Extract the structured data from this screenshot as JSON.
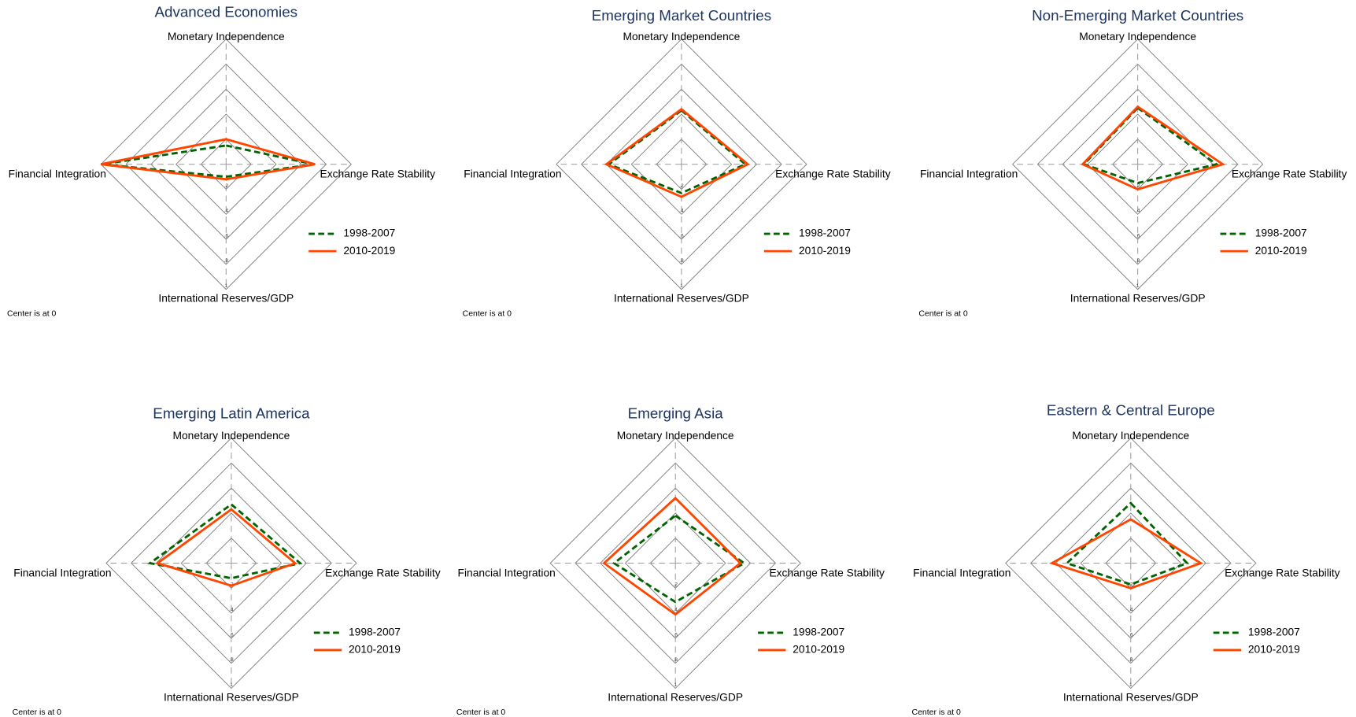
{
  "chart_data": [
    {
      "type": "radar",
      "title": "Advanced Economies",
      "categories": [
        "Monetary Independence",
        "Exchange Rate Stability",
        "International Reserves/GDP",
        "Financial Integration"
      ],
      "rlim": [
        0,
        1
      ],
      "rticks": [
        {
          "value": 0.2,
          "label": ".2"
        },
        {
          "value": 0.4,
          "label": ".4"
        },
        {
          "value": 0.6,
          "label": ".6"
        },
        {
          "value": 0.8,
          "label": ".8"
        },
        1
      ],
      "note": "Center is at 0",
      "series": [
        {
          "name": "1998-2007",
          "color": "#006400",
          "dashed": true,
          "values": [
            0.15,
            0.7,
            0.1,
            0.99
          ]
        },
        {
          "name": "2010-2019",
          "color": "#ff4500",
          "dashed": false,
          "values": [
            0.2,
            0.71,
            0.12,
            1.0
          ]
        }
      ]
    },
    {
      "type": "radar",
      "title": "Emerging Market Countries",
      "categories": [
        "Monetary Independence",
        "Exchange Rate Stability",
        "International Reserves/GDP",
        "Financial Integration"
      ],
      "rlim": [
        0,
        1
      ],
      "rticks": [
        {
          "value": 0.2,
          "label": ".2"
        },
        {
          "value": 0.4,
          "label": ".4"
        },
        {
          "value": 0.6,
          "label": ".6"
        },
        {
          "value": 0.8,
          "label": ".8"
        },
        1
      ],
      "note": "Center is at 0",
      "series": [
        {
          "name": "1998-2007",
          "color": "#006400",
          "dashed": true,
          "values": [
            0.43,
            0.51,
            0.23,
            0.58
          ]
        },
        {
          "name": "2010-2019",
          "color": "#ff4500",
          "dashed": false,
          "values": [
            0.44,
            0.53,
            0.26,
            0.6
          ]
        }
      ]
    },
    {
      "type": "radar",
      "title": "Non-Emerging Market Countries",
      "categories": [
        "Monetary Independence",
        "Exchange Rate Stability",
        "International Reserves/GDP",
        "Financial Integration"
      ],
      "rlim": [
        0,
        1
      ],
      "rticks": [
        {
          "value": 0.2,
          "label": ".2"
        },
        {
          "value": 0.4,
          "label": ".4"
        },
        {
          "value": 0.6,
          "label": ".6"
        },
        {
          "value": 0.8,
          "label": ".8"
        },
        1
      ],
      "note": "Center is at 0",
      "series": [
        {
          "name": "1998-2007",
          "color": "#006400",
          "dashed": true,
          "values": [
            0.45,
            0.63,
            0.15,
            0.43
          ]
        },
        {
          "name": "2010-2019",
          "color": "#ff4500",
          "dashed": false,
          "values": [
            0.46,
            0.68,
            0.2,
            0.44
          ]
        }
      ]
    },
    {
      "type": "radar",
      "title": "Emerging Latin America",
      "categories": [
        "Monetary Independence",
        "Exchange Rate Stability",
        "International Reserves/GDP",
        "Financial Integration"
      ],
      "rlim": [
        0,
        1
      ],
      "rticks": [
        {
          "value": 0.2,
          "label": ".2"
        },
        {
          "value": 0.4,
          "label": ".4"
        },
        {
          "value": 0.6,
          "label": ".6"
        },
        {
          "value": 0.8,
          "label": ".8"
        },
        1
      ],
      "note": "Center is at 0",
      "series": [
        {
          "name": "1998-2007",
          "color": "#006400",
          "dashed": true,
          "values": [
            0.47,
            0.55,
            0.12,
            0.65
          ]
        },
        {
          "name": "2010-2019",
          "color": "#ff4500",
          "dashed": false,
          "values": [
            0.43,
            0.51,
            0.18,
            0.59
          ]
        }
      ]
    },
    {
      "type": "radar",
      "title": "Emerging Asia",
      "categories": [
        "Monetary Independence",
        "Exchange Rate Stability",
        "International Reserves/GDP",
        "Financial Integration"
      ],
      "rlim": [
        0,
        1
      ],
      "rticks": [
        {
          "value": 0.2,
          "label": ".2"
        },
        {
          "value": 0.4,
          "label": ".4"
        },
        {
          "value": 0.6,
          "label": ".6"
        },
        {
          "value": 0.8,
          "label": ".8"
        },
        1
      ],
      "note": "Center is at 0",
      "series": [
        {
          "name": "1998-2007",
          "color": "#006400",
          "dashed": true,
          "values": [
            0.38,
            0.55,
            0.31,
            0.49
          ]
        },
        {
          "name": "2010-2019",
          "color": "#ff4500",
          "dashed": false,
          "values": [
            0.52,
            0.52,
            0.41,
            0.57
          ]
        }
      ]
    },
    {
      "type": "radar",
      "title": "Eastern & Central Europe",
      "categories": [
        "Monetary Independence",
        "Exchange Rate Stability",
        "International Reserves/GDP",
        "Financial Integration"
      ],
      "rlim": [
        0,
        1
      ],
      "rticks": [
        {
          "value": 0.2,
          "label": ".2"
        },
        {
          "value": 0.4,
          "label": ".4"
        },
        {
          "value": 0.6,
          "label": ".6"
        },
        {
          "value": 0.8,
          "label": ".8"
        },
        1
      ],
      "note": "Center is at 0",
      "series": [
        {
          "name": "1998-2007",
          "color": "#006400",
          "dashed": true,
          "values": [
            0.48,
            0.45,
            0.17,
            0.51
          ]
        },
        {
          "name": "2010-2019",
          "color": "#ff4500",
          "dashed": false,
          "values": [
            0.35,
            0.56,
            0.2,
            0.63
          ]
        }
      ]
    }
  ]
}
